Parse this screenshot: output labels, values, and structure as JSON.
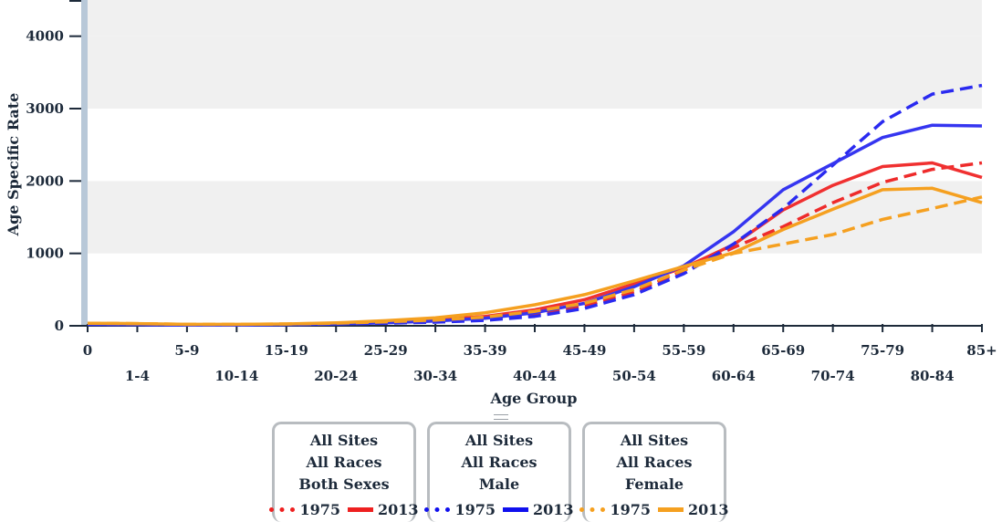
{
  "chart_data": {
    "type": "line",
    "xlabel": "Age Group",
    "ylabel": "Age Specific Rate",
    "categories": [
      "0",
      "1-4",
      "5-9",
      "10-14",
      "15-19",
      "20-24",
      "25-29",
      "30-34",
      "35-39",
      "40-44",
      "45-49",
      "50-54",
      "55-59",
      "60-64",
      "65-69",
      "70-74",
      "75-79",
      "80-84",
      "85+"
    ],
    "ylim": [
      0,
      4500
    ],
    "yticks": [
      0,
      1000,
      2000,
      3000,
      4000
    ],
    "grid_bands": true,
    "series": [
      {
        "name": "1975",
        "group": 0,
        "color": "#ee2b2b",
        "dash": "dotted-dash",
        "values": [
          30,
          25,
          15,
          15,
          20,
          30,
          45,
          65,
          95,
          160,
          270,
          470,
          760,
          1080,
          1370,
          1700,
          1980,
          2160,
          2250
        ]
      },
      {
        "name": "2013",
        "group": 0,
        "color": "#f03030",
        "dash": "solid",
        "values": [
          30,
          25,
          15,
          15,
          20,
          30,
          50,
          80,
          130,
          220,
          360,
          580,
          800,
          1120,
          1600,
          1940,
          2200,
          2250,
          2050
        ]
      },
      {
        "name": "1975",
        "group": 1,
        "color": "#2a2af0",
        "dash": "dash",
        "values": [
          20,
          15,
          10,
          10,
          15,
          25,
          35,
          50,
          75,
          130,
          240,
          430,
          720,
          1130,
          1620,
          2220,
          2820,
          3200,
          3320
        ]
      },
      {
        "name": "2013",
        "group": 1,
        "color": "#3535f0",
        "dash": "solid",
        "values": [
          20,
          15,
          10,
          10,
          15,
          25,
          40,
          65,
          105,
          180,
          310,
          540,
          830,
          1300,
          1880,
          2240,
          2600,
          2770,
          2760
        ]
      },
      {
        "name": "1975",
        "group": 2,
        "color": "#f5a020",
        "dash": "dash",
        "values": [
          35,
          30,
          20,
          20,
          25,
          35,
          55,
          80,
          120,
          200,
          310,
          500,
          770,
          1000,
          1130,
          1260,
          1470,
          1620,
          1780
        ]
      },
      {
        "name": "2013",
        "group": 2,
        "color": "#f5a020",
        "dash": "solid",
        "values": [
          35,
          30,
          20,
          20,
          25,
          40,
          70,
          110,
          180,
          290,
          430,
          620,
          820,
          1010,
          1330,
          1610,
          1880,
          1900,
          1700
        ]
      }
    ]
  },
  "legend": {
    "groups": [
      {
        "site": "All Sites",
        "race": "All Races",
        "sex": "Both Sexes",
        "color": "#ee2020",
        "entries": [
          "1975",
          "2013"
        ]
      },
      {
        "site": "All Sites",
        "race": "All Races",
        "sex": "Male",
        "color": "#1010ee",
        "entries": [
          "1975",
          "2013"
        ]
      },
      {
        "site": "All Sites",
        "race": "All Races",
        "sex": "Female",
        "color": "#f5a020",
        "entries": [
          "1975",
          "2013"
        ]
      }
    ]
  }
}
